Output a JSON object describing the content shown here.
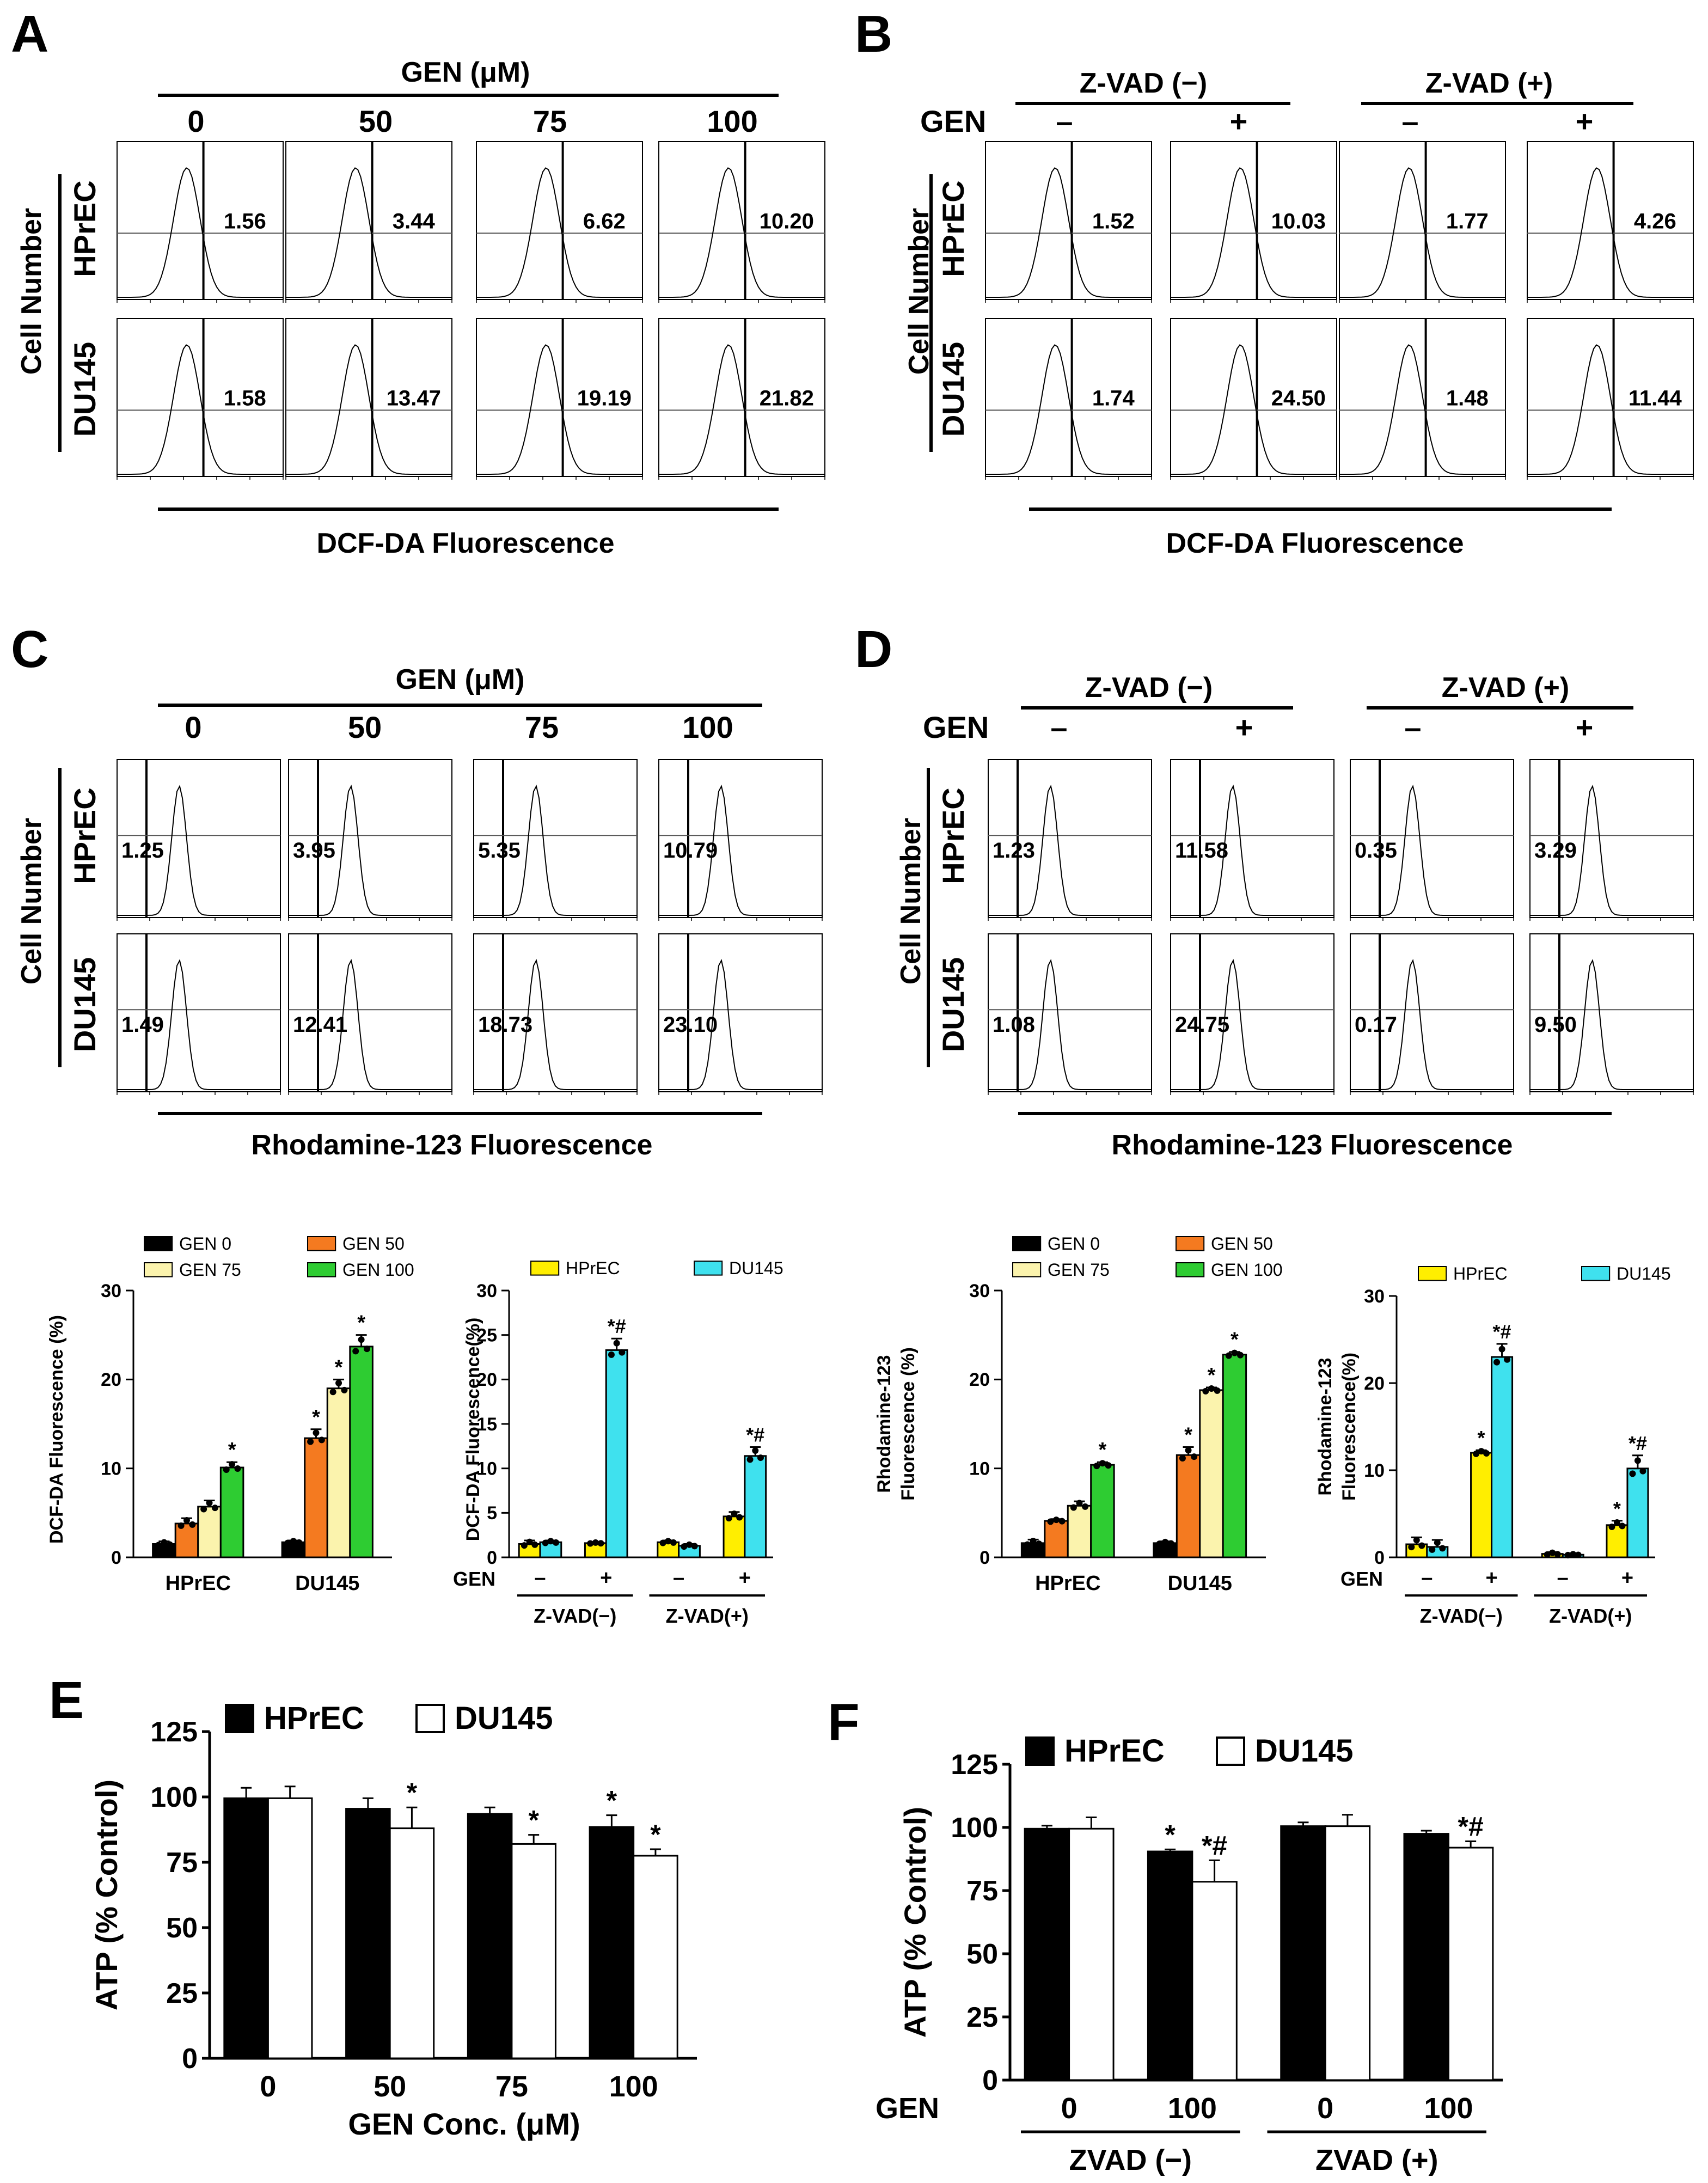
{
  "panel_labels": {
    "A": "A",
    "B": "B",
    "C": "C",
    "D": "D",
    "E": "E",
    "F": "F"
  },
  "colors": {
    "gen0": "#000000",
    "gen50": "#f47a20",
    "gen75": "#fbf3ad",
    "gen100": "#2ecc32",
    "hprec": "#ffee00",
    "du145": "#3fe1ee",
    "axis": "#000000"
  },
  "rows": [
    "HPrEC",
    "DU145"
  ],
  "panel_A": {
    "header": "GEN (μM)",
    "columns": [
      "0",
      "50",
      "75",
      "100"
    ],
    "ylabel": "Cell Number",
    "xlabel": "DCF-DA Fluorescence",
    "values": [
      [
        "1.56",
        "3.44",
        "6.62",
        "10.20"
      ],
      [
        "1.58",
        "13.47",
        "19.19",
        "21.82"
      ]
    ]
  },
  "panel_B": {
    "groups": [
      "Z-VAD (−)",
      "Z-VAD (+)"
    ],
    "gen_label": "GEN",
    "signs": [
      "–",
      "+",
      "–",
      "+"
    ],
    "ylabel": "Cell Number",
    "xlabel": "DCF-DA Fluorescence",
    "values": [
      [
        "1.52",
        "10.03",
        "1.77",
        "4.26"
      ],
      [
        "1.74",
        "24.50",
        "1.48",
        "11.44"
      ]
    ]
  },
  "panel_C": {
    "header": "GEN (μM)",
    "columns": [
      "0",
      "50",
      "75",
      "100"
    ],
    "ylabel": "Cell Number",
    "xlabel": "Rhodamine-123 Fluorescence",
    "values": [
      [
        "1.25",
        "3.95",
        "5.35",
        "10.79"
      ],
      [
        "1.49",
        "12.41",
        "18.73",
        "23.10"
      ]
    ]
  },
  "panel_D": {
    "groups": [
      "Z-VAD (−)",
      "Z-VAD (+)"
    ],
    "gen_label": "GEN",
    "signs": [
      "–",
      "+",
      "–",
      "+"
    ],
    "ylabel": "Cell Number",
    "xlabel": "Rhodamine-123 Fluorescence",
    "values": [
      [
        "1.23",
        "11.58",
        "0.35",
        "3.29"
      ],
      [
        "1.08",
        "24.75",
        "0.17",
        "9.50"
      ]
    ]
  },
  "chart_data": [
    {
      "type": "bar",
      "panel": "C-bar-dcf",
      "ylabel": "DCF-DA Fluorescence (%)",
      "ylim": [
        0,
        30
      ],
      "yticks": [
        "0",
        "10",
        "20",
        "30"
      ],
      "categories": [
        "HPrEC",
        "DU145"
      ],
      "series": [
        {
          "name": "GEN 0",
          "values": [
            1.5,
            1.7
          ]
        },
        {
          "name": "GEN 50",
          "values": [
            3.8,
            13.4
          ]
        },
        {
          "name": "GEN 75",
          "values": [
            5.7,
            19.0
          ]
        },
        {
          "name": "GEN 100",
          "values": [
            10.1,
            23.7
          ]
        }
      ],
      "errors": [
        [
          0.3,
          0.2
        ],
        [
          0.6,
          1.0
        ],
        [
          0.7,
          1.0
        ],
        [
          0.6,
          1.3
        ]
      ],
      "sig": [
        [
          false,
          false
        ],
        [
          false,
          true
        ],
        [
          false,
          true
        ],
        [
          true,
          true
        ]
      ],
      "legend": "top"
    },
    {
      "type": "bar",
      "panel": "C-bar-dcf-zvad",
      "ylabel": "DCF-DA Fluorescence(%)",
      "ylim": [
        0,
        30
      ],
      "yticks": [
        "0",
        "5",
        "10",
        "15",
        "20",
        "25",
        "30"
      ],
      "gen_label": "GEN",
      "signs": [
        "–",
        "+",
        "–",
        "+"
      ],
      "groups": [
        "Z-VAD(−)",
        "Z-VAD(+)"
      ],
      "series": [
        {
          "name": "HPrEC",
          "values": [
            1.5,
            1.6,
            1.7,
            4.6
          ]
        },
        {
          "name": "DU145",
          "values": [
            1.7,
            23.3,
            1.3,
            11.4
          ]
        }
      ],
      "errors": [
        [
          0.4,
          0.1,
          0.2,
          0.5
        ],
        [
          0.2,
          1.3,
          0.2,
          1.0
        ]
      ],
      "sig": [
        [
          false,
          false,
          false,
          false
        ],
        [
          false,
          true,
          false,
          true
        ]
      ],
      "sig_text": [
        "*",
        "*#"
      ],
      "legend": "top"
    },
    {
      "type": "bar",
      "panel": "D-bar-rh",
      "ylabel": [
        "Rhodamine-123",
        "Fluorescence (%)"
      ],
      "ylim": [
        0,
        30
      ],
      "yticks": [
        "0",
        "10",
        "20",
        "30"
      ],
      "categories": [
        "HPrEC",
        "DU145"
      ],
      "series": [
        {
          "name": "GEN 0",
          "values": [
            1.6,
            1.6
          ]
        },
        {
          "name": "GEN 50",
          "values": [
            4.1,
            11.5
          ]
        },
        {
          "name": "GEN 75",
          "values": [
            5.8,
            18.8
          ]
        },
        {
          "name": "GEN 100",
          "values": [
            10.4,
            22.8
          ]
        }
      ],
      "errors": [
        [
          0.4,
          0.2
        ],
        [
          0.2,
          0.9
        ],
        [
          0.5,
          0.3
        ],
        [
          0.3,
          0.3
        ]
      ],
      "sig": [
        [
          false,
          false
        ],
        [
          false,
          true
        ],
        [
          false,
          true
        ],
        [
          true,
          true
        ]
      ],
      "legend": "top"
    },
    {
      "type": "bar",
      "panel": "D-bar-rh-zvad",
      "ylabel": [
        "Rhodamine-123",
        "Fluorescence(%)"
      ],
      "ylim": [
        0,
        30
      ],
      "yticks": [
        "0",
        "10",
        "20",
        "30"
      ],
      "gen_label": "GEN",
      "signs": [
        "–",
        "+",
        "–",
        "+"
      ],
      "groups": [
        "Z-VAD(−)",
        "Z-VAD(+)"
      ],
      "series": [
        {
          "name": "HPrEC",
          "values": [
            1.5,
            12.0,
            0.4,
            3.7
          ]
        },
        {
          "name": "DU145",
          "values": [
            1.2,
            23.0,
            0.3,
            10.2
          ]
        }
      ],
      "errors": [
        [
          0.8,
          0.3,
          0.2,
          0.5
        ],
        [
          0.8,
          1.5,
          0.1,
          1.5
        ]
      ],
      "sig": [
        [
          false,
          true,
          false,
          true
        ],
        [
          false,
          true,
          false,
          true
        ]
      ],
      "sig_text": [
        "*",
        "*#"
      ],
      "legend": "top"
    },
    {
      "type": "bar",
      "panel": "E",
      "ylabel": "ATP (% Control)",
      "xlabel": "GEN Conc. (μM)",
      "ylim": [
        0,
        125
      ],
      "yticks": [
        "0",
        "25",
        "50",
        "75",
        "100",
        "125"
      ],
      "categories": [
        "0",
        "50",
        "75",
        "100"
      ],
      "series": [
        {
          "name": "HPrEC",
          "values": [
            99.5,
            95.5,
            93.5,
            88.5
          ]
        },
        {
          "name": "DU145",
          "values": [
            99.5,
            88.0,
            82.0,
            77.5
          ]
        }
      ],
      "errors": [
        [
          4,
          4,
          2.5,
          4.5
        ],
        [
          4.5,
          8,
          3.5,
          2.5
        ]
      ],
      "sig": [
        [
          false,
          false,
          false,
          true
        ],
        [
          false,
          true,
          true,
          true
        ]
      ],
      "legend": "top"
    },
    {
      "type": "bar",
      "panel": "F",
      "ylabel": "ATP (% Control)",
      "ylim": [
        0,
        125
      ],
      "yticks": [
        "0",
        "25",
        "50",
        "75",
        "100",
        "125"
      ],
      "gen_label": "GEN",
      "categories": [
        "0",
        "100",
        "0",
        "100"
      ],
      "groups": [
        "ZVAD (−)",
        "ZVAD (+)"
      ],
      "series": [
        {
          "name": "HPrEC",
          "values": [
            99.5,
            90.5,
            100.5,
            97.5
          ]
        },
        {
          "name": "DU145",
          "values": [
            99.5,
            78.5,
            100.5,
            92.0
          ]
        }
      ],
      "errors": [
        [
          1.2,
          0.8,
          1.5,
          1.2
        ],
        [
          4.5,
          8.5,
          4.5,
          2.5
        ]
      ],
      "sig": [
        [
          false,
          true,
          false,
          false
        ],
        [
          false,
          true,
          false,
          true
        ]
      ],
      "sig_text": [
        "*",
        "*#"
      ],
      "legend": "top"
    }
  ]
}
